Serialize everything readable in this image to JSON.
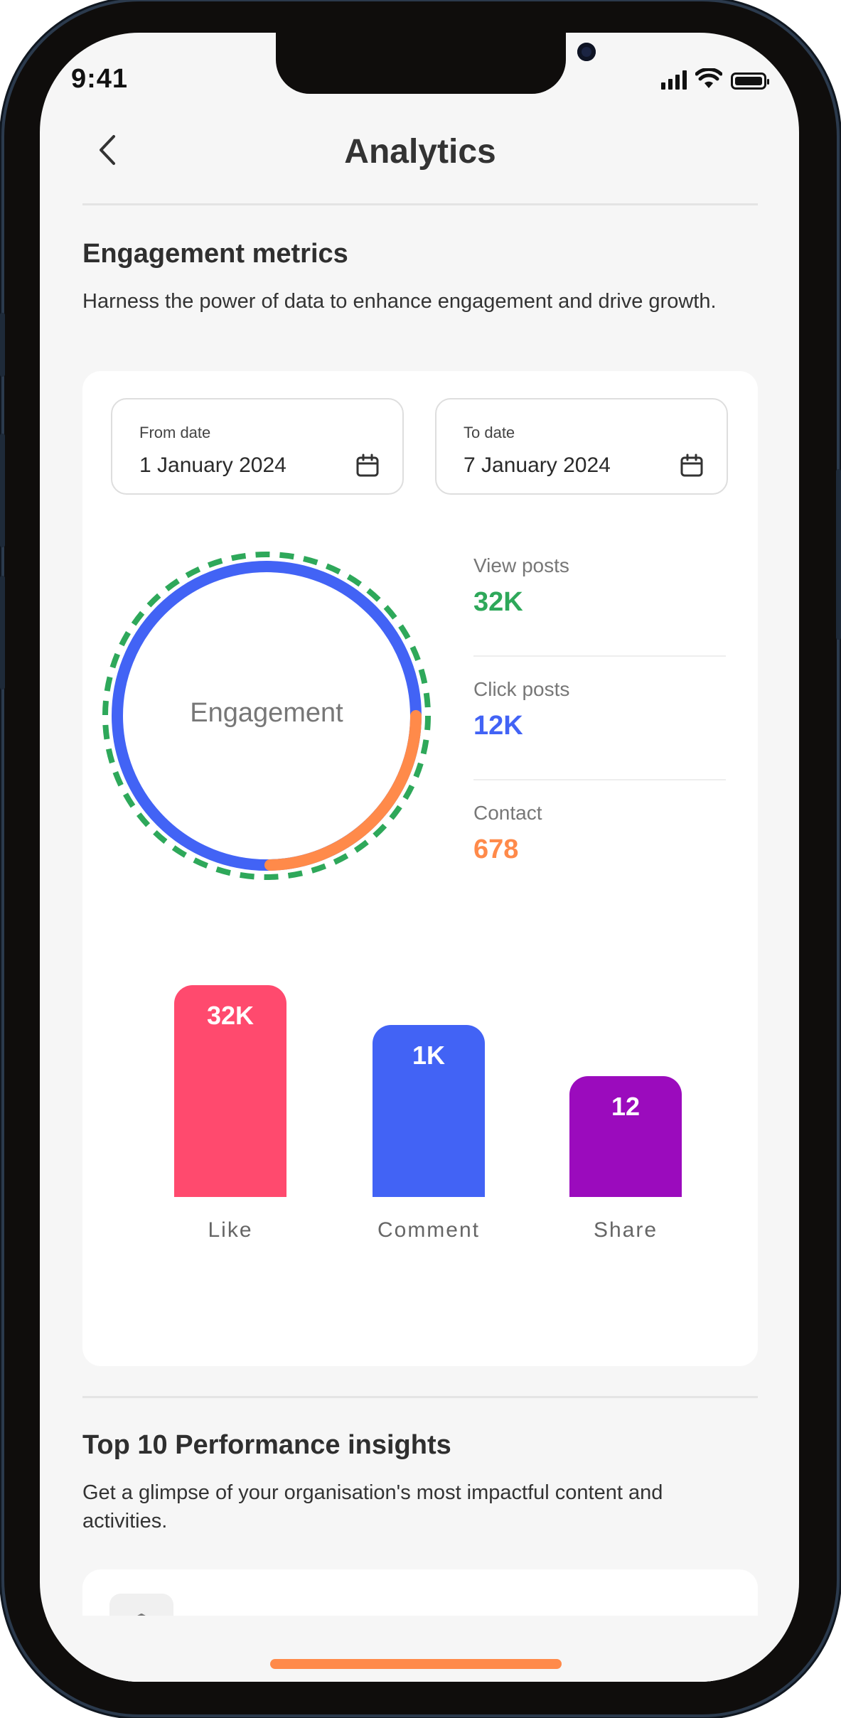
{
  "status_bar": {
    "time": "9:41"
  },
  "header": {
    "title": "Analytics"
  },
  "engagement": {
    "title": "Engagement metrics",
    "description": "Harness the power of data to enhance engagement and drive growth.",
    "from_date": {
      "label": "From date",
      "value": "1 January 2024"
    },
    "to_date": {
      "label": "To date",
      "value": "7 January 2024"
    },
    "donut_label": "Engagement",
    "metrics": [
      {
        "label": "View posts",
        "value": "32K",
        "color": "#2ea85a"
      },
      {
        "label": "Click posts",
        "value": "12K",
        "color": "#4263f5"
      },
      {
        "label": "Contact",
        "value": "678",
        "color": "#ff8a4a"
      }
    ]
  },
  "colors": {
    "accent_orange": "#ff8a4a",
    "accent_blue": "#4263f5",
    "accent_green": "#2ea85a",
    "like_pink": "#ff4a6e",
    "share_purple": "#9b0bbd"
  },
  "chart_data": {
    "type": "bar",
    "categories": [
      "Like",
      "Comment",
      "Share"
    ],
    "labels": [
      "32K",
      "1K",
      "12"
    ],
    "values": [
      32000,
      1000,
      12
    ],
    "colors": [
      "#ff4a6e",
      "#4263f5",
      "#9b0bbd"
    ],
    "title": "",
    "xlabel": "",
    "ylabel": ""
  },
  "insights": {
    "title": "Top 10 Performance insights",
    "description": "Get a glimpse of your organisation's most impactful content and activities."
  }
}
